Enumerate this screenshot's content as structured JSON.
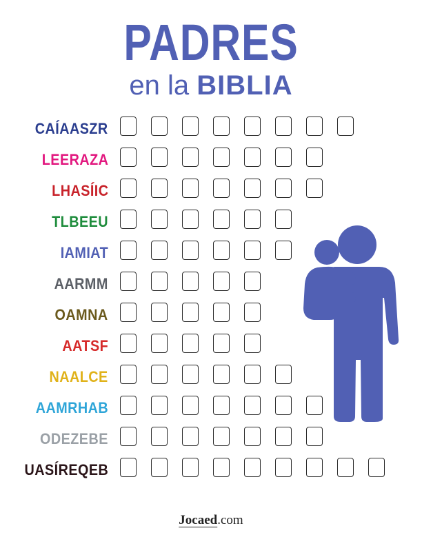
{
  "title": {
    "main": "PADRES",
    "sub_prefix": "en la ",
    "sub_bold": "BIBLIA"
  },
  "colors": {
    "accent": "#5160b4"
  },
  "rows": [
    {
      "word": "CAÍAASZR",
      "color": "#2b3e8f",
      "boxes": 8
    },
    {
      "word": "LEERAZA",
      "color": "#e2187f",
      "boxes": 7
    },
    {
      "word": "LHASÍIC",
      "color": "#c8222a",
      "boxes": 7
    },
    {
      "word": "TLBEEU",
      "color": "#1e8c3c",
      "boxes": 6
    },
    {
      "word": "IAMIAT",
      "color": "#5160b4",
      "boxes": 6
    },
    {
      "word": "AARMM",
      "color": "#5b5f66",
      "boxes": 5
    },
    {
      "word": "OAMNA",
      "color": "#6b5a1d",
      "boxes": 5
    },
    {
      "word": "AATSF",
      "color": "#d62a2a",
      "boxes": 5
    },
    {
      "word": "NAALCE",
      "color": "#e0b21a",
      "boxes": 6
    },
    {
      "word": "AAMRHAB",
      "color": "#2ea5d8",
      "boxes": 7
    },
    {
      "word": "ODEZEBE",
      "color": "#9aa0a6",
      "boxes": 7
    },
    {
      "word": "UASÍREQEB",
      "color": "#2a1418",
      "boxes": 9
    }
  ],
  "illustration": {
    "icon": "parent-holding-child-icon",
    "color": "#5160b4"
  },
  "footer": {
    "brand": "Jocaed",
    "suffix": ".com"
  }
}
